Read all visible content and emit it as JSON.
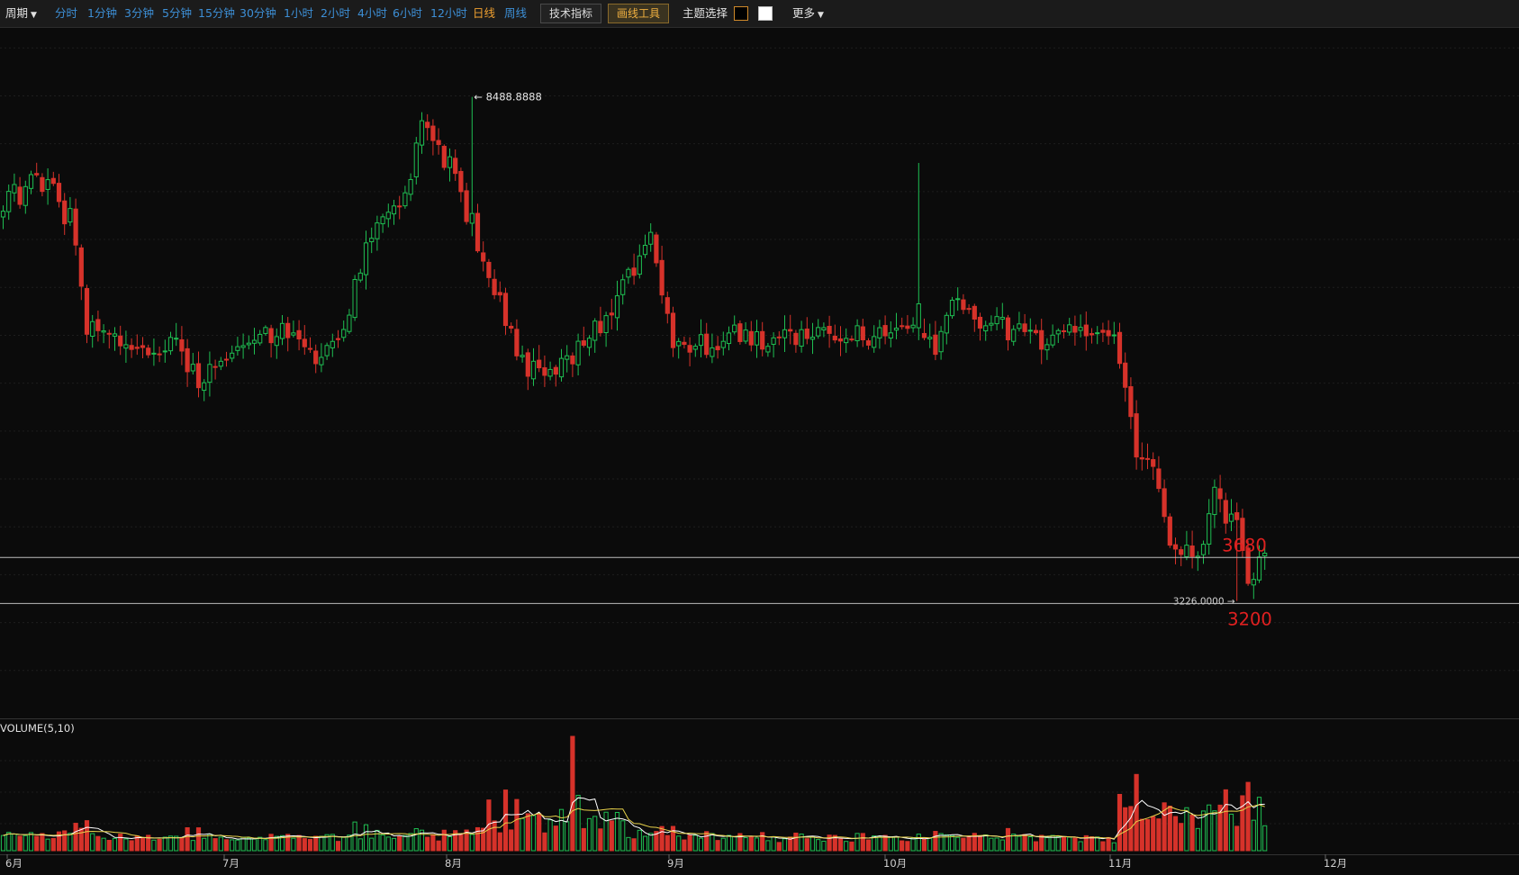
{
  "toolbar": {
    "period_label": "周期",
    "periods": [
      "分时",
      "1分钟",
      "3分钟",
      "5分钟",
      "15分钟",
      "30分钟",
      "1小时",
      "2小时",
      "4小时",
      "6小时",
      "12小时",
      "日线",
      "周线"
    ],
    "active_period": "日线",
    "indicator_button": "技术指标",
    "drawing_tool_button": "画线工具",
    "theme_label": "主题选择",
    "more_label": "更多"
  },
  "chart_data": {
    "type": "candlestick",
    "title": "",
    "xlabel": "",
    "ylabel": "",
    "ylim": [
      2000,
      9200
    ],
    "x_ticks": [
      "6月",
      "7月",
      "8月",
      "9月",
      "10月",
      "11月",
      "12月"
    ],
    "colors": {
      "up": "#1fbe52",
      "down": "#d6322a",
      "ma5": "#ffffff",
      "ma10": "#e8d24a",
      "hline": "#bbbbbb",
      "level_label": "#e02020"
    },
    "annotations": {
      "high": "8488.8888",
      "low": "3226.0000"
    },
    "horizontal_levels": [
      {
        "value": 3680,
        "label": "3680"
      },
      {
        "value": 3200,
        "label": "3200"
      }
    ],
    "volume": {
      "label": "VOLUME(5,10)"
    },
    "anchors": [
      [
        0,
        7300
      ],
      [
        6,
        7600
      ],
      [
        10,
        7500
      ],
      [
        12,
        7200
      ],
      [
        15,
        6100
      ],
      [
        18,
        6000
      ],
      [
        25,
        5800
      ],
      [
        31,
        5900
      ],
      [
        35,
        5500
      ],
      [
        41,
        5900
      ],
      [
        48,
        6000
      ],
      [
        52,
        6100
      ],
      [
        56,
        5700
      ],
      [
        60,
        5900
      ],
      [
        65,
        6900
      ],
      [
        70,
        7400
      ],
      [
        75,
        8050
      ],
      [
        78,
        8000
      ],
      [
        82,
        7400
      ],
      [
        88,
        6500
      ],
      [
        92,
        5800
      ],
      [
        97,
        5500
      ],
      [
        102,
        5800
      ],
      [
        108,
        6200
      ],
      [
        113,
        6700
      ],
      [
        116,
        7000
      ],
      [
        120,
        5900
      ],
      [
        126,
        5900
      ],
      [
        131,
        6000
      ],
      [
        137,
        5950
      ],
      [
        143,
        6000
      ],
      [
        150,
        6000
      ],
      [
        163,
        6000
      ],
      [
        167,
        5900
      ],
      [
        170,
        6300
      ],
      [
        178,
        6100
      ],
      [
        185,
        5950
      ],
      [
        192,
        6050
      ],
      [
        198,
        6050
      ],
      [
        200,
        5800
      ],
      [
        203,
        4800
      ],
      [
        206,
        4700
      ],
      [
        209,
        3900
      ],
      [
        212,
        3750
      ],
      [
        215,
        3750
      ],
      [
        217,
        4300
      ],
      [
        221,
        4000
      ],
      [
        223,
        3400
      ],
      [
        226,
        3650
      ]
    ],
    "special_bars": [
      {
        "index": 84,
        "high": 8488.8888
      },
      {
        "index": 102,
        "volume_spike": true
      },
      {
        "index": 164,
        "high_wick": 7800
      },
      {
        "index": 221,
        "low": 3226.0
      }
    ]
  }
}
